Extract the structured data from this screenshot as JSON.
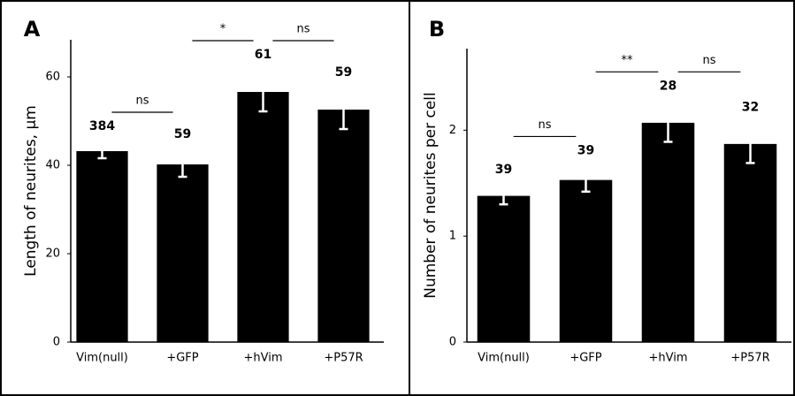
{
  "chart_data": [
    {
      "type": "bar",
      "panel": "A",
      "y_label": "Length of neurites, µm",
      "categories": [
        "Vim(null)",
        "+GFP",
        "+hVim",
        "+P57R"
      ],
      "values": [
        43.2,
        40.2,
        56.6,
        52.6
      ],
      "errors": [
        1.6,
        2.8,
        4.4,
        4.4
      ],
      "bar_labels": [
        "384",
        "59",
        "61",
        "59"
      ],
      "color": "#000000",
      "ylim": [
        0,
        68.4
      ],
      "yticks": [
        0,
        20,
        40,
        60
      ],
      "comparisons": [
        {
          "from": 0,
          "to": 1,
          "label": "ns"
        },
        {
          "from": 1,
          "to": 2,
          "label": "*"
        },
        {
          "from": 2,
          "to": 3,
          "label": "ns"
        }
      ]
    },
    {
      "type": "bar",
      "panel": "B",
      "y_label": "Number of neurites per cell",
      "categories": [
        "Vim(null)",
        "+GFP",
        "+hVim",
        "+P57R"
      ],
      "values": [
        1.38,
        1.53,
        2.07,
        1.87
      ],
      "errors": [
        0.08,
        0.11,
        0.18,
        0.18
      ],
      "bar_labels": [
        "39",
        "39",
        "28",
        "32"
      ],
      "color": "#000000",
      "ylim": [
        0,
        2.77
      ],
      "yticks": [
        0,
        1,
        2
      ],
      "comparisons": [
        {
          "from": 0,
          "to": 1,
          "label": "ns"
        },
        {
          "from": 1,
          "to": 2,
          "label": "**"
        },
        {
          "from": 2,
          "to": 3,
          "label": "ns"
        }
      ]
    }
  ]
}
